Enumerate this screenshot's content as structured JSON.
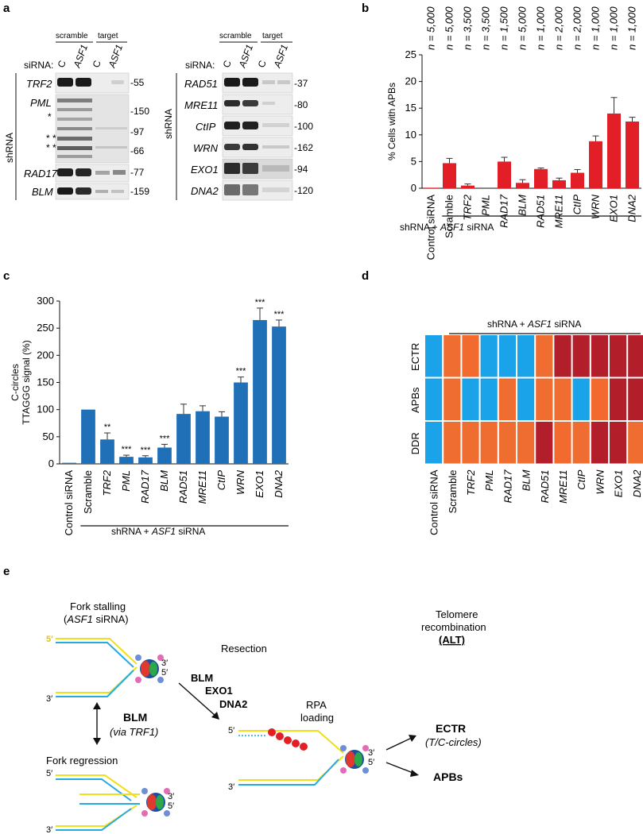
{
  "panels": {
    "a": {
      "label": "a",
      "left": {
        "header_scramble": "scramble",
        "header_target": "target",
        "sirna_label": "siRNA:",
        "lanes": [
          "C",
          "ASF1",
          "C",
          "ASF1"
        ],
        "side_label": "shRNA",
        "rows": [
          {
            "name": "TRF2",
            "kda": "-55"
          },
          {
            "name": "PML",
            "kda": "-150"
          },
          {
            "name": "",
            "kda": "-97"
          },
          {
            "name": "",
            "kda": "-66"
          },
          {
            "name": "RAD17",
            "kda": "-77"
          },
          {
            "name": "BLM",
            "kda": "-159"
          }
        ],
        "asterisks": [
          "*",
          "*",
          "*",
          "*",
          "*"
        ]
      },
      "right": {
        "header_scramble": "scramble",
        "header_target": "target",
        "sirna_label": "siRNA:",
        "lanes": [
          "C",
          "ASF1",
          "C",
          "ASF1"
        ],
        "side_label": "shRNA",
        "rows": [
          {
            "name": "RAD51",
            "kda": "-37"
          },
          {
            "name": "MRE11",
            "kda": "-80"
          },
          {
            "name": "CtIP",
            "kda": "-100"
          },
          {
            "name": "WRN",
            "kda": "-162"
          },
          {
            "name": "EXO1",
            "kda": "-94"
          },
          {
            "name": "DNA2",
            "kda": "-120"
          }
        ]
      }
    },
    "b": {
      "label": "b",
      "group_label_pre": "shRNA + ",
      "group_label_it": "ASF1",
      "group_label_post": " siRNA"
    },
    "c": {
      "label": "c",
      "group_label_pre": "shRNA + ",
      "group_label_it": "ASF1",
      "group_label_post": " siRNA"
    },
    "d": {
      "label": "d",
      "group_label_pre": "shRNA + ",
      "group_label_it": "ASF1",
      "group_label_post": " siRNA",
      "rows": [
        "ECTR",
        "APBs",
        "DDR"
      ],
      "columns": [
        "Control siRNA",
        "Scramble",
        "TRF2",
        "PML",
        "RAD17",
        "BLM",
        "RAD51",
        "MRE11",
        "CtIP",
        "WRN",
        "EXO1",
        "DNA2"
      ],
      "levels": [
        [
          0,
          2,
          3,
          0,
          0,
          0,
          2,
          4,
          4,
          4,
          4,
          4
        ],
        [
          0,
          2,
          0,
          0,
          2,
          0,
          2,
          2,
          0,
          3,
          4,
          4
        ],
        [
          0,
          2,
          2,
          2,
          2,
          2,
          4,
          3,
          2,
          4,
          4,
          2
        ]
      ],
      "colors": [
        "#1aa3e8",
        "#e21f26",
        "#ef6d30",
        "#f26a2e",
        "#b21e2a"
      ]
    },
    "e": {
      "label": "e",
      "fork_stalling": "Fork stalling",
      "fork_stalling_sub_open": "(",
      "fork_stalling_sub_it": "ASF1",
      "fork_stalling_sub_close": " siRNA)",
      "resection": "Resection",
      "telomere": "Telomere",
      "recombination": "recombination",
      "alt": "(ALT)",
      "blm_via": "BLM",
      "via_trf1": "(via TRF1)",
      "fork_regression": "Fork regression",
      "enzymes": [
        "BLM",
        "EXO1",
        "DNA2"
      ],
      "rpa": "RPA",
      "loading": "loading",
      "ectr": "ECTR",
      "tc_circles": "(T/C-circles)",
      "apbs": "APBs",
      "end5": "5′",
      "end3": "3′"
    }
  },
  "chart_data": [
    {
      "id": "b",
      "type": "bar",
      "categories": [
        "Control siRNA",
        "Scramble",
        "TRF2",
        "PML",
        "RAD17",
        "BLM",
        "RAD51",
        "MRE11",
        "CtIP",
        "WRN",
        "EXO1",
        "DNA2"
      ],
      "values": [
        0.1,
        4.7,
        0.5,
        0,
        5.0,
        1.0,
        3.6,
        1.5,
        2.9,
        8.8,
        14.0,
        12.5
      ],
      "errors": [
        0,
        0.9,
        0.3,
        0,
        0.8,
        0.6,
        0.2,
        0.4,
        0.6,
        1.0,
        3.0,
        0.8
      ],
      "n_labels": [
        "n = 5,000",
        "n = 5,000",
        "n = 3,500",
        "n = 3,500",
        "n = 1,500",
        "n = 5,000",
        "n = 1,000",
        "n = 2,000",
        "n = 2,000",
        "n = 1,000",
        "n = 1,000",
        "n = 1,000"
      ],
      "ylabel": "% Cells with APBs",
      "ylim": [
        0,
        25
      ],
      "yticks": [
        0,
        5,
        10,
        15,
        20,
        25
      ],
      "color": "#e21f26"
    },
    {
      "id": "c",
      "type": "bar",
      "categories": [
        "Control siRNA",
        "Scramble",
        "TRF2",
        "PML",
        "RAD17",
        "BLM",
        "RAD51",
        "MRE11",
        "CtIP",
        "WRN",
        "EXO1",
        "DNA2"
      ],
      "values": [
        2,
        100,
        45,
        13,
        12,
        30,
        92,
        97,
        87,
        150,
        265,
        253
      ],
      "errors": [
        0,
        0,
        12,
        3,
        3,
        6,
        18,
        10,
        9,
        10,
        22,
        12
      ],
      "significance": [
        "",
        "",
        "**",
        "***",
        "***",
        "***",
        "",
        "",
        "",
        "***",
        "***",
        "***"
      ],
      "ylabel_line1": "C-circles",
      "ylabel_line2": "TTAGGG signal (%)",
      "ylim": [
        0,
        300
      ],
      "yticks": [
        0,
        50,
        100,
        150,
        200,
        250,
        300
      ],
      "color": "#2070b8"
    }
  ]
}
